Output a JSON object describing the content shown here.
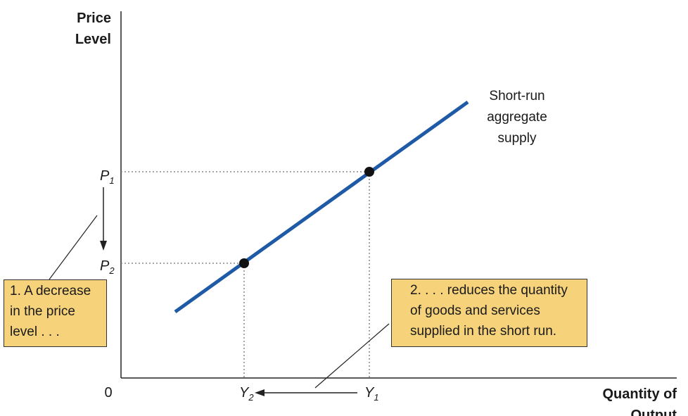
{
  "axes": {
    "y_title_line1": "Price",
    "y_title_line2": "Level",
    "x_title_line1": "Quantity of",
    "x_title_line2": "Output",
    "origin": "0"
  },
  "curve": {
    "label_line1": "Short-run",
    "label_line2": "aggregate",
    "label_line3": "supply",
    "color": "#1f5aa6"
  },
  "ticks": {
    "p1_main": "P",
    "p1_sub": "1",
    "p2_main": "P",
    "p2_sub": "2",
    "y1_main": "Y",
    "y1_sub": "1",
    "y2_main": "Y",
    "y2_sub": "2"
  },
  "notes": {
    "note1_lines": [
      "1. A decrease",
      "in the price",
      "level . . ."
    ],
    "note2_lines": [
      "2. . . . reduces the quantity",
      "of goods and services",
      "supplied in the short run."
    ],
    "box_color": "#f6d27a"
  }
}
